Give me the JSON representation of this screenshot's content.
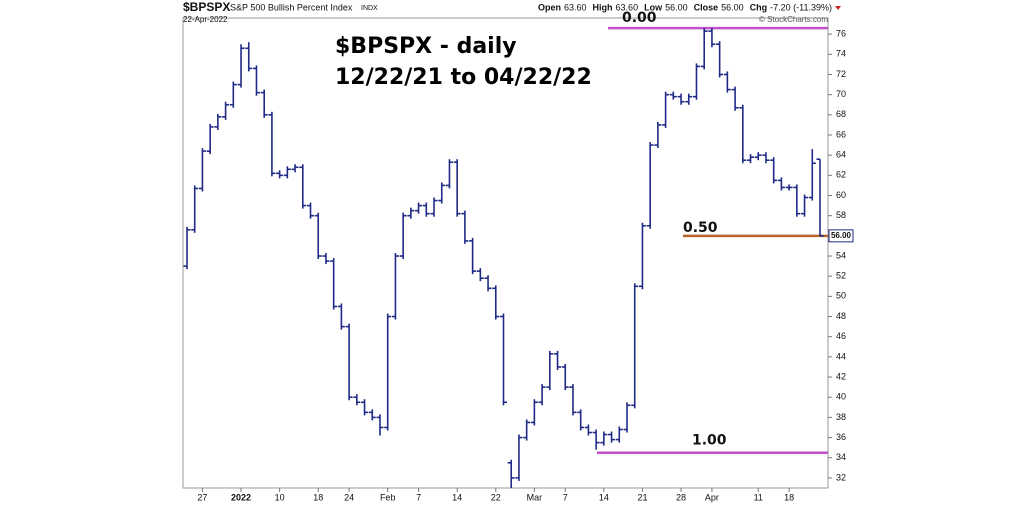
{
  "chart_data": {
    "type": "ohlc",
    "symbol": "$BPSPX",
    "title": "S&P 500 Bullish Percent Index",
    "exchange": "INDX",
    "date": "22-Apr-2022",
    "quote": [
      {
        "label": "Open",
        "value": "63.60"
      },
      {
        "label": "High",
        "value": "63.60"
      },
      {
        "label": "Low",
        "value": "56.00"
      },
      {
        "label": "Close",
        "value": "56.00"
      },
      {
        "label": "Chg",
        "value": "-7.20 (-11.39%)"
      }
    ],
    "credit": "© StockCharts.com",
    "annotations": [
      "$BPSPX - daily",
      "12/22/21 to 04/22/22"
    ],
    "fib_levels": [
      {
        "label": "0.00",
        "value": 76.6,
        "color": "#c050c8"
      },
      {
        "label": "0.50",
        "value": 56,
        "color": "#b8652a"
      },
      {
        "label": "1.00",
        "value": 34.5,
        "color": "#c050c8"
      }
    ],
    "last_price_label": "56.00",
    "color": "#1f2a86",
    "categories": [
      null,
      null,
      "27",
      null,
      null,
      null,
      null,
      "2022",
      null,
      null,
      null,
      null,
      "10",
      null,
      null,
      null,
      null,
      "18",
      null,
      null,
      null,
      "24",
      null,
      null,
      null,
      null,
      "Feb",
      null,
      null,
      null,
      "7",
      null,
      null,
      null,
      null,
      "14",
      null,
      null,
      null,
      null,
      "22",
      null,
      null,
      null,
      null,
      "Mar",
      null,
      null,
      null,
      "7",
      null,
      null,
      null,
      null,
      "14",
      null,
      null,
      null,
      null,
      "21",
      null,
      null,
      null,
      null,
      "28",
      null,
      null,
      null,
      "Apr",
      null,
      null,
      null,
      null,
      null,
      "11",
      null,
      null,
      null,
      "18",
      null,
      null,
      null,
      null
    ],
    "open": [
      53.0,
      56.6,
      60.7,
      64.4,
      66.8,
      67.8,
      69.0,
      71.0,
      74.6,
      72.6,
      70.2,
      68.0,
      62.2,
      62.0,
      62.6,
      62.8,
      59.0,
      58.0,
      54.0,
      53.5,
      49.0,
      47.0,
      40.0,
      39.5,
      38.5,
      38.0,
      37.0,
      48.0,
      54.0,
      58.0,
      58.5,
      59.0,
      58.2,
      59.5,
      61.0,
      63.3,
      58.2,
      55.5,
      52.5,
      51.8,
      50.8,
      48.0,
      33.5,
      32.0,
      36.0,
      37.5,
      39.5,
      41.0,
      44.3,
      43.0,
      41.0,
      38.5,
      37.0,
      36.5,
      35.5,
      36.3,
      35.8,
      36.8,
      39.2,
      51.0,
      57.0,
      65.0,
      67.0,
      70.0,
      69.8,
      69.3,
      69.8,
      72.8,
      76.3,
      75.0,
      72.0,
      70.5,
      68.7,
      63.5,
      63.8,
      64.0,
      63.5,
      61.5,
      60.8,
      60.8,
      58.2,
      59.8,
      63.6
    ],
    "high": [
      56.9,
      61.0,
      64.7,
      67.1,
      68.1,
      69.3,
      71.3,
      75.0,
      75.2,
      72.9,
      70.5,
      68.3,
      62.5,
      62.9,
      63.1,
      63.1,
      59.3,
      58.3,
      54.3,
      53.8,
      49.3,
      47.3,
      40.3,
      39.8,
      38.8,
      38.3,
      48.3,
      54.3,
      58.3,
      58.8,
      59.3,
      59.3,
      59.8,
      61.3,
      63.6,
      63.6,
      58.5,
      55.8,
      52.8,
      52.1,
      51.1,
      48.3,
      33.8,
      36.3,
      37.8,
      39.8,
      41.3,
      44.6,
      44.6,
      43.3,
      41.3,
      38.8,
      37.3,
      36.8,
      36.6,
      36.6,
      37.1,
      39.5,
      51.3,
      57.3,
      65.3,
      67.3,
      70.3,
      70.3,
      70.1,
      70.1,
      73.1,
      76.6,
      76.6,
      75.3,
      72.3,
      70.8,
      69.0,
      64.1,
      64.3,
      64.3,
      63.8,
      61.8,
      61.1,
      61.1,
      60.1,
      64.6,
      63.6
    ],
    "low": [
      52.7,
      56.3,
      60.4,
      64.1,
      66.5,
      67.5,
      68.7,
      70.7,
      72.3,
      69.9,
      67.7,
      61.9,
      61.7,
      61.7,
      62.3,
      58.7,
      57.7,
      53.7,
      53.2,
      48.7,
      46.7,
      39.7,
      39.2,
      38.2,
      37.7,
      36.2,
      36.7,
      47.7,
      53.7,
      57.7,
      58.2,
      57.9,
      57.9,
      59.2,
      60.7,
      57.9,
      55.2,
      52.2,
      51.5,
      50.5,
      47.7,
      39.2,
      31.0,
      31.7,
      35.7,
      37.2,
      39.2,
      40.7,
      42.7,
      40.7,
      38.2,
      36.7,
      36.2,
      34.8,
      35.2,
      35.5,
      35.5,
      36.5,
      38.9,
      50.7,
      56.7,
      64.7,
      66.7,
      69.5,
      69.0,
      69.0,
      69.5,
      72.5,
      74.7,
      71.7,
      70.2,
      68.4,
      63.2,
      63.2,
      63.5,
      63.2,
      61.2,
      60.5,
      60.5,
      57.9,
      57.9,
      59.5,
      56.0
    ],
    "close": [
      56.6,
      60.7,
      64.4,
      66.8,
      67.8,
      69.0,
      71.0,
      74.6,
      72.6,
      70.2,
      68.0,
      62.2,
      62.0,
      62.6,
      62.8,
      59.0,
      58.0,
      54.0,
      53.5,
      49.0,
      47.0,
      40.0,
      39.5,
      38.5,
      38.0,
      37.0,
      48.0,
      54.0,
      58.0,
      58.5,
      59.0,
      58.2,
      59.5,
      61.0,
      63.3,
      58.2,
      55.5,
      52.5,
      51.8,
      50.8,
      48.0,
      39.5,
      32.0,
      36.0,
      37.5,
      39.5,
      41.0,
      44.3,
      43.0,
      41.0,
      38.5,
      37.0,
      36.5,
      35.5,
      36.3,
      35.8,
      36.8,
      39.2,
      51.0,
      57.0,
      65.0,
      67.0,
      70.0,
      69.8,
      69.3,
      69.8,
      72.8,
      76.3,
      75.0,
      72.0,
      70.5,
      68.7,
      63.5,
      63.8,
      64.0,
      63.5,
      61.5,
      60.8,
      60.8,
      58.2,
      59.8,
      63.2,
      56.0
    ],
    "ylim": [
      31,
      77.6
    ],
    "yticks": [
      32,
      34,
      36,
      38,
      40,
      42,
      44,
      46,
      48,
      50,
      52,
      54,
      56,
      58,
      60,
      62,
      64,
      66,
      68,
      70,
      72,
      74,
      76
    ],
    "grid": false
  }
}
